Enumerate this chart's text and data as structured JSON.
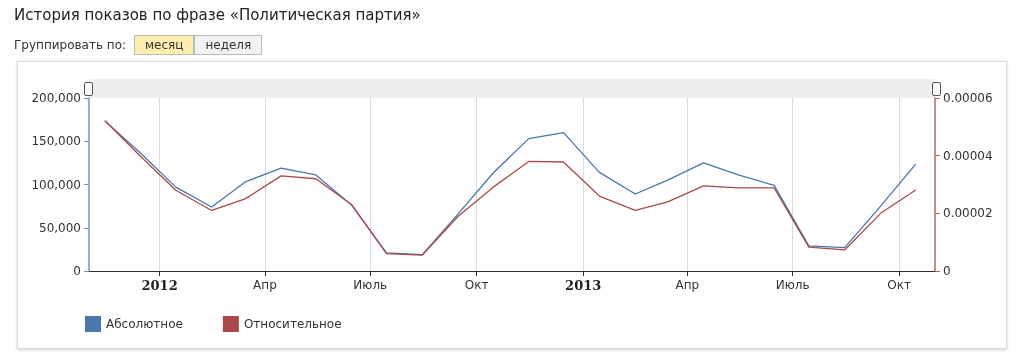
{
  "chart_data": {
    "type": "line",
    "title": "История показов по фразе «Политическая партия»",
    "annotations": [
      "Группировать по:",
      "месяц",
      "неделя"
    ],
    "x": [
      "2011-11-15",
      "2011-12-15",
      "2012-01-15",
      "2012-02-15",
      "2012-03-15",
      "2012-04-15",
      "2012-05-15",
      "2012-06-15",
      "2012-07-15",
      "2012-08-15",
      "2012-09-15",
      "2012-10-15",
      "2012-11-15",
      "2012-12-15",
      "2013-01-15",
      "2013-02-15",
      "2013-03-15",
      "2013-04-15",
      "2013-05-15",
      "2013-06-15",
      "2013-07-15",
      "2013-08-15",
      "2013-09-15",
      "2013-10-15"
    ],
    "series": [
      {
        "name": "Абсолютное",
        "color": "#4a76a8",
        "values": [
          173000,
          137000,
          97000,
          74000,
          103000,
          119000,
          111000,
          76000,
          21000,
          19000,
          66000,
          113000,
          153000,
          160000,
          114000,
          89000,
          105000,
          125000,
          111000,
          99000,
          29000,
          27000,
          75000,
          123000
        ]
      },
      {
        "name": "Относительное",
        "color": "#a94a48",
        "axis": "y2",
        "values": [
          5.2e-05,
          4e-05,
          2.8e-05,
          2.1e-05,
          2.5e-05,
          3.3e-05,
          3.2e-05,
          2.3e-05,
          6e-06,
          5.5e-06,
          1.9e-05,
          2.9e-05,
          3.8e-05,
          3.78e-05,
          2.6e-05,
          2.1e-05,
          2.4e-05,
          2.95e-05,
          2.88e-05,
          2.88e-05,
          8.3e-06,
          7.3e-06,
          2e-05,
          2.8e-05
        ]
      }
    ],
    "xlim": [
      "2011-11-01",
      "2013-11-01"
    ],
    "xticks": [
      {
        "value": "2012-01-01",
        "label": "2012"
      },
      {
        "value": "2012-04-01",
        "label": "Апр"
      },
      {
        "value": "2012-07-01",
        "label": "Июль"
      },
      {
        "value": "2012-10-01",
        "label": "Окт"
      },
      {
        "value": "2013-01-01",
        "label": "2013"
      },
      {
        "value": "2013-04-01",
        "label": "Апр"
      },
      {
        "value": "2013-07-01",
        "label": "Июль"
      },
      {
        "value": "2013-10-01",
        "label": "Окт"
      }
    ],
    "ylim": [
      0,
      200000
    ],
    "yticks": [
      0,
      {
        "value": 50000,
        "label": "50,000"
      },
      {
        "value": 100000,
        "label": "100,000"
      },
      {
        "value": 150000,
        "label": "150,000"
      },
      {
        "value": 200000,
        "label": "200,000"
      }
    ],
    "y2lim": [
      0,
      6e-05
    ],
    "y2ticks": [
      0,
      {
        "value": 2e-05,
        "label": "0.00002"
      },
      {
        "value": 4e-05,
        "label": "0.00004"
      },
      {
        "value": 6e-05,
        "label": "0.00006"
      }
    ],
    "grid": "x",
    "legend": "bottom left",
    "marker": "none",
    "line_style": "solid"
  }
}
